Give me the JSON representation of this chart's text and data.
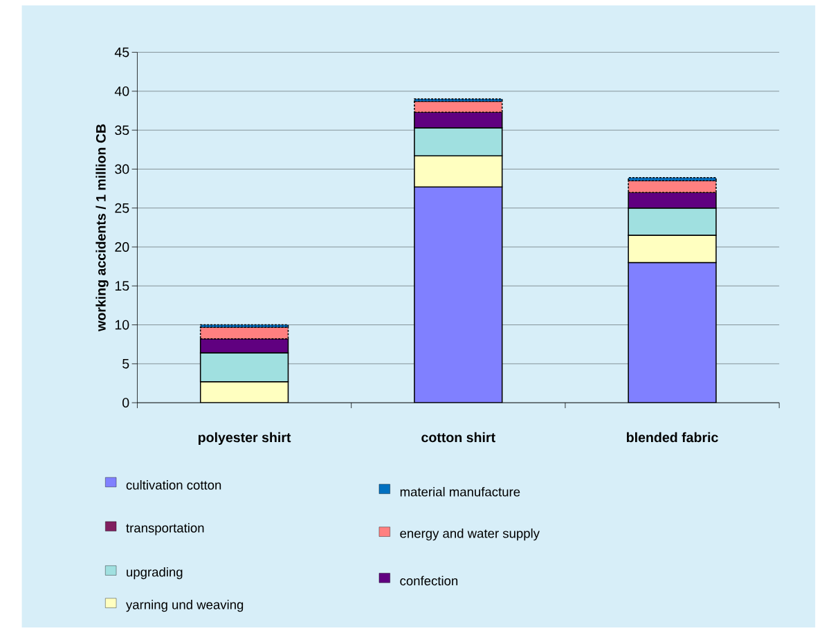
{
  "chart_data": {
    "type": "bar",
    "stacked": true,
    "ylabel": "working accidents / 1 million CB",
    "categories": [
      "polyester shirt",
      "cotton shirt",
      "blended fabric"
    ],
    "series": [
      {
        "name": "cultivation cotton",
        "color": "#8080ff",
        "values": [
          0,
          27.7,
          18.0
        ]
      },
      {
        "name": "yarning und weaving",
        "color": "#ffffc0",
        "values": [
          2.7,
          4.0,
          3.5
        ]
      },
      {
        "name": "upgrading",
        "color": "#a0e0e0",
        "values": [
          3.7,
          3.6,
          3.5
        ]
      },
      {
        "name": "transportation",
        "color": "#801f5f",
        "values": [
          0,
          0,
          0
        ]
      },
      {
        "name": "confection",
        "color": "#600080",
        "values": [
          1.8,
          2.0,
          2.0
        ]
      },
      {
        "name": "energy and  water supply",
        "color": "#ff8080",
        "values": [
          1.5,
          1.4,
          1.5
        ]
      },
      {
        "name": "material manufacture",
        "color": "#0070c0",
        "values": [
          0.3,
          0.3,
          0.4
        ]
      }
    ],
    "ylim": [
      0,
      45
    ],
    "yticks": [
      0,
      5,
      10,
      15,
      20,
      25,
      30,
      35,
      40,
      45
    ],
    "grid": "y",
    "legend": "bottom"
  }
}
